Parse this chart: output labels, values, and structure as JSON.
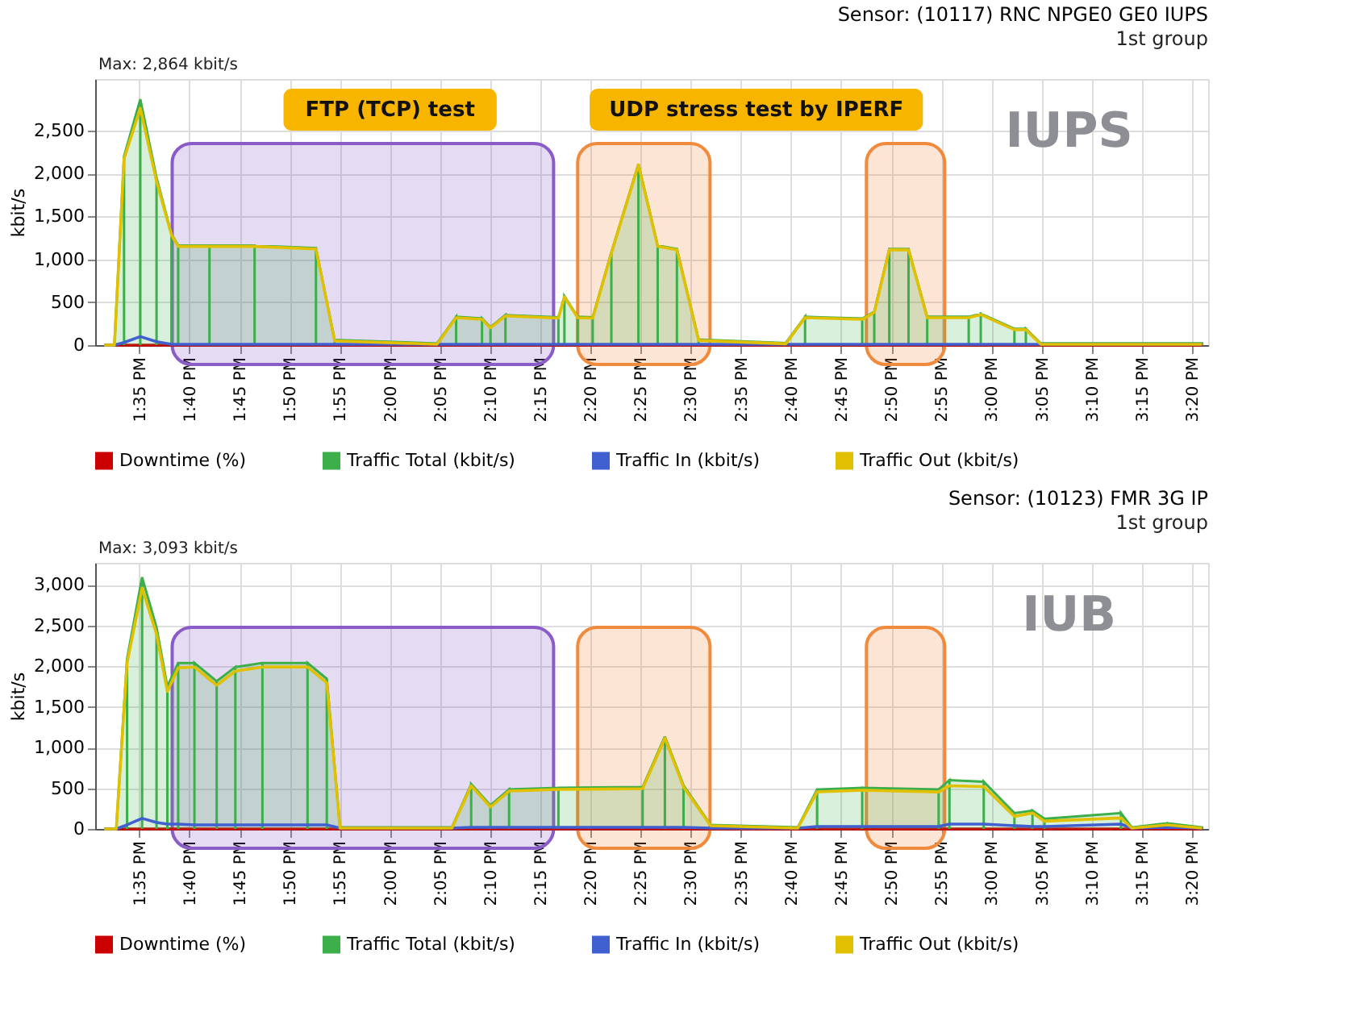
{
  "chart_data": [
    {
      "type": "line",
      "title": "Sensor: (10117) RNC NPGE0 GE0 IUPS",
      "subtitle": "1st group",
      "ylabel": "kbit/s",
      "x": [
        13.525,
        13.542,
        13.558,
        13.585,
        13.612,
        13.637,
        13.648,
        13.7,
        13.775,
        13.877,
        13.908,
        14.078,
        14.11,
        14.153,
        14.167,
        14.192,
        14.28,
        14.29,
        14.312,
        14.337,
        14.368,
        14.413,
        14.445,
        14.477,
        14.513,
        14.658,
        14.69,
        14.785,
        14.805,
        14.83,
        14.862,
        14.893,
        14.962,
        14.982,
        15.038,
        15.057,
        15.082,
        15.35
      ],
      "series": [
        {
          "name": "Downtime (%)",
          "type": "line",
          "color": "#cc0000",
          "values": [
            0,
            0,
            0,
            0,
            0,
            0,
            0,
            0,
            0,
            0,
            0,
            0,
            0,
            0,
            0,
            0,
            0,
            0,
            0,
            0,
            0,
            0,
            0,
            0,
            0,
            0,
            0,
            0,
            0,
            0,
            0,
            0,
            0,
            0,
            0,
            0,
            0,
            0
          ]
        },
        {
          "name": "Traffic Total (kbit/s)",
          "type": "area",
          "color": "#3cae4a",
          "values": [
            0,
            0,
            2200,
            2864,
            1950,
            1290,
            1160,
            1160,
            1160,
            1130,
            60,
            20,
            330,
            310,
            210,
            350,
            325,
            570,
            330,
            325,
            1080,
            2110,
            1160,
            1120,
            65,
            25,
            330,
            310,
            390,
            1120,
            1120,
            330,
            330,
            365,
            190,
            190,
            20,
            20
          ]
        },
        {
          "name": "Traffic In (kbit/s)",
          "type": "line",
          "color": "#4060d0",
          "values": [
            0,
            0,
            30,
            100,
            40,
            10,
            10,
            10,
            10,
            10,
            10,
            10,
            10,
            10,
            10,
            10,
            10,
            10,
            10,
            10,
            10,
            10,
            10,
            10,
            10,
            10,
            10,
            10,
            10,
            10,
            10,
            10,
            10,
            10,
            10,
            10,
            10,
            10
          ]
        },
        {
          "name": "Traffic Out (kbit/s)",
          "type": "line",
          "color": "#e0c000",
          "values": [
            0,
            0,
            2170,
            2760,
            1910,
            1280,
            1150,
            1150,
            1150,
            1120,
            50,
            10,
            320,
            300,
            200,
            340,
            315,
            560,
            320,
            315,
            1070,
            2100,
            1150,
            1110,
            55,
            15,
            320,
            300,
            380,
            1110,
            1110,
            320,
            320,
            355,
            180,
            180,
            10,
            10
          ]
        }
      ],
      "xlim": [
        13.51,
        15.36
      ],
      "xticks": [
        {
          "value": 13.5833,
          "label": "1:35 PM"
        },
        {
          "value": 13.6667,
          "label": "1:40 PM"
        },
        {
          "value": 13.75,
          "label": "1:45 PM"
        },
        {
          "value": 13.8333,
          "label": "1:50 PM"
        },
        {
          "value": 13.9167,
          "label": "1:55 PM"
        },
        {
          "value": 14,
          "label": "2:00 PM"
        },
        {
          "value": 14.0833,
          "label": "2:05 PM"
        },
        {
          "value": 14.1667,
          "label": "2:10 PM"
        },
        {
          "value": 14.25,
          "label": "2:15 PM"
        },
        {
          "value": 14.3333,
          "label": "2:20 PM"
        },
        {
          "value": 14.4167,
          "label": "2:25 PM"
        },
        {
          "value": 14.5,
          "label": "2:30 PM"
        },
        {
          "value": 14.5833,
          "label": "2:35 PM"
        },
        {
          "value": 14.6667,
          "label": "2:40 PM"
        },
        {
          "value": 14.75,
          "label": "2:45 PM"
        },
        {
          "value": 14.8333,
          "label": "2:50 PM"
        },
        {
          "value": 14.9167,
          "label": "2:55 PM"
        },
        {
          "value": 15,
          "label": "3:00 PM"
        },
        {
          "value": 15.0833,
          "label": "3:05 PM"
        },
        {
          "value": 15.1667,
          "label": "3:10 PM"
        },
        {
          "value": 15.25,
          "label": "3:15 PM"
        },
        {
          "value": 15.3333,
          "label": "3:20 PM"
        }
      ],
      "ylim": [
        0,
        3100
      ],
      "yticks": [
        0,
        500,
        {
          "value": 1000,
          "label": "1,000"
        },
        {
          "value": 1500,
          "label": "1,500"
        },
        {
          "value": 2000,
          "label": "2,000"
        },
        {
          "value": 2500,
          "label": "2,500"
        }
      ],
      "grid": true,
      "legend": "bottom",
      "bands": [
        {
          "axis": "x",
          "from": 13.638,
          "to": 14.272,
          "color": "#8a5cc7"
        },
        {
          "axis": "x",
          "from": 14.312,
          "to": 14.532,
          "color": "#f08a3c"
        },
        {
          "axis": "x",
          "from": 14.792,
          "to": 14.922,
          "color": "#f08a3c"
        }
      ],
      "annotations": [
        "Max: 2,864 kbit/s",
        "FTP (TCP) test",
        "UDP stress test by IPERF",
        "IUPS"
      ]
    },
    {
      "type": "line",
      "title": "Sensor: (10123) FMR 3G IP",
      "subtitle": "1st group",
      "ylabel": "kbit/s",
      "x": [
        13.525,
        13.545,
        13.563,
        13.588,
        13.612,
        13.63,
        13.648,
        13.675,
        13.712,
        13.743,
        13.788,
        13.863,
        13.895,
        13.917,
        14.103,
        14.135,
        14.167,
        14.198,
        14.28,
        14.42,
        14.457,
        14.488,
        14.533,
        14.678,
        14.71,
        14.785,
        14.912,
        14.93,
        14.987,
        15.038,
        15.068,
        15.088,
        15.215,
        15.233,
        15.292,
        15.35
      ],
      "series": [
        {
          "name": "Downtime (%)",
          "type": "line",
          "color": "#cc0000",
          "values": [
            0,
            0,
            0,
            0,
            0,
            0,
            0,
            0,
            0,
            0,
            0,
            0,
            0,
            0,
            0,
            0,
            0,
            0,
            0,
            0,
            0,
            0,
            0,
            0,
            0,
            0,
            0,
            0,
            0,
            0,
            0,
            0,
            0,
            0,
            0,
            0
          ]
        },
        {
          "name": "Traffic Total (kbit/s)",
          "type": "area",
          "color": "#3cae4a",
          "values": [
            0,
            0,
            2090,
            3093,
            2475,
            1750,
            2040,
            2040,
            1815,
            1990,
            2040,
            2040,
            1845,
            20,
            20,
            550,
            290,
            485,
            505,
            515,
            1135,
            535,
            50,
            20,
            485,
            505,
            485,
            600,
            580,
            195,
            225,
            125,
            195,
            20,
            70,
            20
          ]
        },
        {
          "name": "Traffic In (kbit/s)",
          "type": "line",
          "color": "#4060d0",
          "values": [
            0,
            0,
            50,
            130,
            80,
            60,
            60,
            50,
            50,
            50,
            50,
            50,
            50,
            10,
            10,
            20,
            20,
            20,
            20,
            20,
            20,
            20,
            10,
            10,
            30,
            30,
            30,
            60,
            60,
            40,
            30,
            30,
            60,
            10,
            20,
            10
          ]
        },
        {
          "name": "Traffic Out (kbit/s)",
          "type": "line",
          "color": "#e0c000",
          "values": [
            0,
            0,
            2040,
            2960,
            2395,
            1690,
            1980,
            1990,
            1765,
            1940,
            1990,
            1990,
            1795,
            10,
            10,
            530,
            270,
            465,
            485,
            495,
            1115,
            515,
            40,
            10,
            455,
            475,
            455,
            530,
            520,
            155,
            195,
            95,
            135,
            10,
            50,
            10
          ]
        }
      ],
      "xlim": [
        13.51,
        15.36
      ],
      "xticks": [
        {
          "value": 13.5833,
          "label": "1:35 PM"
        },
        {
          "value": 13.6667,
          "label": "1:40 PM"
        },
        {
          "value": 13.75,
          "label": "1:45 PM"
        },
        {
          "value": 13.8333,
          "label": "1:50 PM"
        },
        {
          "value": 13.9167,
          "label": "1:55 PM"
        },
        {
          "value": 14,
          "label": "2:00 PM"
        },
        {
          "value": 14.0833,
          "label": "2:05 PM"
        },
        {
          "value": 14.1667,
          "label": "2:10 PM"
        },
        {
          "value": 14.25,
          "label": "2:15 PM"
        },
        {
          "value": 14.3333,
          "label": "2:20 PM"
        },
        {
          "value": 14.4167,
          "label": "2:25 PM"
        },
        {
          "value": 14.5,
          "label": "2:30 PM"
        },
        {
          "value": 14.5833,
          "label": "2:35 PM"
        },
        {
          "value": 14.6667,
          "label": "2:40 PM"
        },
        {
          "value": 14.75,
          "label": "2:45 PM"
        },
        {
          "value": 14.8333,
          "label": "2:50 PM"
        },
        {
          "value": 14.9167,
          "label": "2:55 PM"
        },
        {
          "value": 15,
          "label": "3:00 PM"
        },
        {
          "value": 15.0833,
          "label": "3:05 PM"
        },
        {
          "value": 15.1667,
          "label": "3:10 PM"
        },
        {
          "value": 15.25,
          "label": "3:15 PM"
        },
        {
          "value": 15.3333,
          "label": "3:20 PM"
        }
      ],
      "ylim": [
        0,
        3270
      ],
      "yticks": [
        0,
        500,
        {
          "value": 1000,
          "label": "1,000"
        },
        {
          "value": 1500,
          "label": "1,500"
        },
        {
          "value": 2000,
          "label": "2,000"
        },
        {
          "value": 2500,
          "label": "2,500"
        },
        {
          "value": 3000,
          "label": "3,000"
        }
      ],
      "grid": true,
      "legend": "bottom",
      "bands": [
        {
          "axis": "x",
          "from": 13.638,
          "to": 14.272,
          "color": "#8a5cc7"
        },
        {
          "axis": "x",
          "from": 14.312,
          "to": 14.532,
          "color": "#f08a3c"
        },
        {
          "axis": "x",
          "from": 14.792,
          "to": 14.922,
          "color": "#f08a3c"
        }
      ],
      "annotations": [
        "Max: 3,093 kbit/s",
        "IUB"
      ]
    }
  ]
}
